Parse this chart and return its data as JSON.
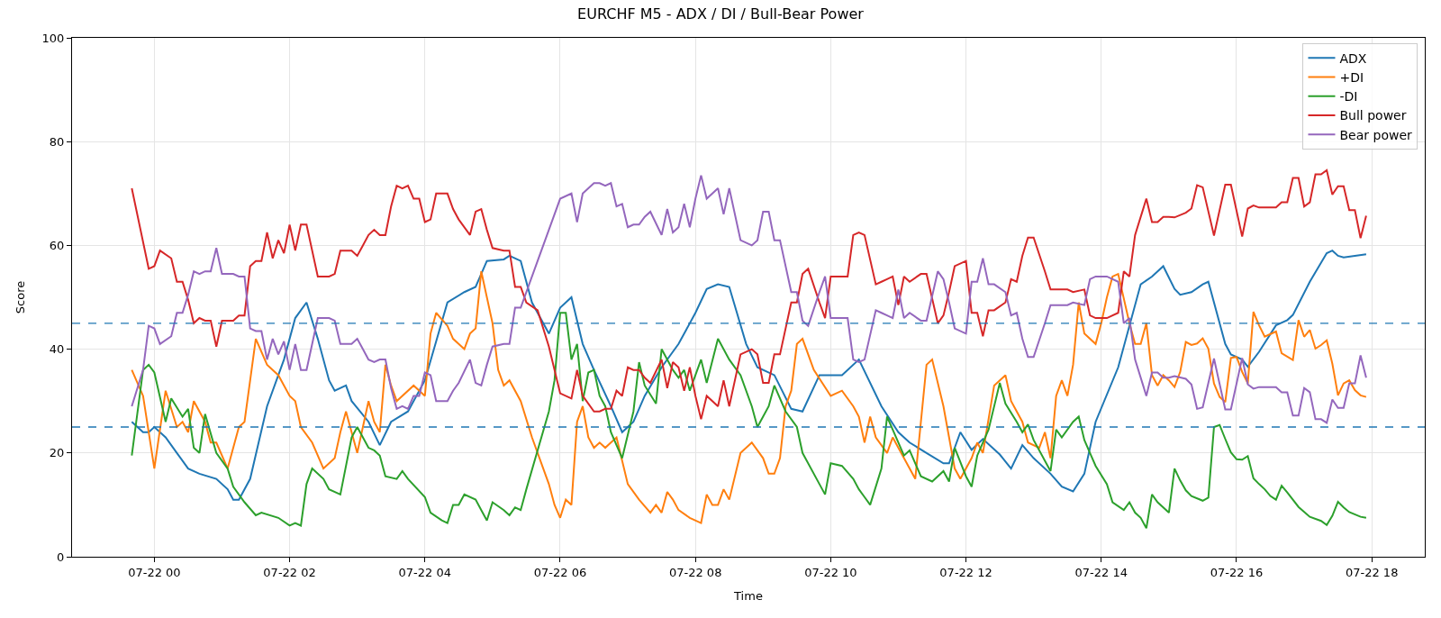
{
  "chart_data": {
    "type": "line",
    "title": "EURCHF M5 - ADX / DI / Bull-Bear Power",
    "xlabel": "Time",
    "ylabel": "Score",
    "xlim": [
      "--07-21T22:47",
      "--07-22T18:47"
    ],
    "xticks": [
      {
        "value": "--07-22T00:00",
        "label": "07-22 00"
      },
      {
        "value": "--07-22T02:00",
        "label": "07-22 02"
      },
      {
        "value": "--07-22T04:00",
        "label": "07-22 04"
      },
      {
        "value": "--07-22T06:00",
        "label": "07-22 06"
      },
      {
        "value": "--07-22T08:00",
        "label": "07-22 08"
      },
      {
        "value": "--07-22T10:00",
        "label": "07-22 10"
      },
      {
        "value": "--07-22T12:00",
        "label": "07-22 12"
      },
      {
        "value": "--07-22T14:00",
        "label": "07-22 14"
      },
      {
        "value": "--07-22T16:00",
        "label": "07-22 16"
      },
      {
        "value": "--07-22T18:00",
        "label": "07-22 18"
      }
    ],
    "ylim": [
      0,
      100
    ],
    "yticks": [
      0,
      20,
      40,
      60,
      80,
      100
    ],
    "grid": true,
    "legend": "top right",
    "line_style": "solid",
    "ref_lines": [
      {
        "axis": "y",
        "value": 25,
        "color": "#1f77b4",
        "line_style": "dashed"
      },
      {
        "axis": "y",
        "value": 45,
        "color": "#1f77b4",
        "line_style": "dashed"
      }
    ],
    "series": [
      {
        "name": "ADX",
        "color": "#1f77b4",
        "x": [
          "--07-21T23:40",
          "--07-21T23:50",
          "--07-21T23:55",
          "--07-22T00:00",
          "--07-22T00:10",
          "--07-22T00:20",
          "--07-22T00:30",
          "--07-22T00:40",
          "--07-22T00:55",
          "--07-22T01:05",
          "--07-22T01:10",
          "--07-22T01:15",
          "--07-22T01:25",
          "--07-22T01:40",
          "--07-22T01:55",
          "--07-22T02:05",
          "--07-22T02:15",
          "--07-22T02:25",
          "--07-22T02:35",
          "--07-22T02:40",
          "--07-22T02:50",
          "--07-22T02:55",
          "--07-22T03:10",
          "--07-22T03:20",
          "--07-22T03:30",
          "--07-22T03:45",
          "--07-22T04:00",
          "--07-22T04:20",
          "--07-22T04:35",
          "--07-22T04:45",
          "--07-22T04:55",
          "--07-22T05:10",
          "--07-22T05:15",
          "--07-22T05:25",
          "--07-22T05:35",
          "--07-22T05:50",
          "--07-22T06:00",
          "--07-22T06:10",
          "--07-22T06:20",
          "--07-22T06:30",
          "--07-22T06:45",
          "--07-22T06:55",
          "--07-22T07:05",
          "--07-22T07:15",
          "--07-22T07:30",
          "--07-22T07:45",
          "--07-22T08:00",
          "--07-22T08:10",
          "--07-22T08:20",
          "--07-22T08:30",
          "--07-22T08:45",
          "--07-22T08:55",
          "--07-22T09:10",
          "--07-22T09:25",
          "--07-22T09:35",
          "--07-22T09:50",
          "--07-22T10:00",
          "--07-22T10:10",
          "--07-22T10:25",
          "--07-22T10:45",
          "--07-22T11:00",
          "--07-22T11:10",
          "--07-22T11:25",
          "--07-22T11:40",
          "--07-22T11:45",
          "--07-22T11:55",
          "--07-22T12:05",
          "--07-22T12:15",
          "--07-22T12:30",
          "--07-22T12:40",
          "--07-22T12:50",
          "--07-22T13:00",
          "--07-22T13:15",
          "--07-22T13:25",
          "--07-22T13:35",
          "--07-22T13:45",
          "--07-22T13:55",
          "--07-22T14:15",
          "--07-22T14:35",
          "--07-22T14:45",
          "--07-22T14:55",
          "--07-22T15:05",
          "--07-22T15:10",
          "--07-22T15:20",
          "--07-22T15:30",
          "--07-22T15:35",
          "--07-22T15:50",
          "--07-22T15:55",
          "--07-22T16:05",
          "--07-22T16:10",
          "--07-22T16:20",
          "--07-22T16:35",
          "--07-22T16:45",
          "--07-22T16:50",
          "--07-22T17:05",
          "--07-22T17:20",
          "--07-22T17:25",
          "--07-22T17:30",
          "--07-22T17:35",
          "--07-22T17:45",
          "--07-22T17:55"
        ],
        "values": [
          26,
          24,
          24,
          25,
          23,
          20,
          17,
          16,
          15,
          13,
          11,
          11,
          15,
          29,
          38,
          46,
          49,
          42,
          34,
          32,
          33,
          30,
          26,
          21.5,
          26,
          28,
          34,
          49,
          51,
          52,
          57,
          57.3,
          58,
          57,
          49,
          43,
          48,
          50,
          41,
          36,
          29,
          24,
          26,
          31,
          36.5,
          41,
          47,
          51.6,
          52.5,
          52,
          41,
          36.5,
          35,
          28.5,
          28,
          35,
          35,
          35,
          38,
          29,
          24,
          22,
          20,
          18,
          18,
          24,
          20.6,
          22.7,
          19.7,
          17,
          21.5,
          19,
          16,
          13.5,
          12.6,
          16,
          26,
          36.5,
          52.5,
          54,
          56,
          51.6,
          50.5,
          51,
          52.5,
          53,
          41,
          39,
          38,
          36.6,
          39.5,
          44.6,
          45.6,
          46.6,
          53,
          58.5,
          59,
          58,
          57.7,
          58,
          58.3
        ]
      },
      {
        "name": "+DI",
        "color": "#ff7f0e",
        "x": [
          "--07-21T23:40",
          "--07-21T23:50",
          "--07-22T00:00",
          "--07-22T00:10",
          "--07-22T00:20",
          "--07-22T00:25",
          "--07-22T00:30",
          "--07-22T00:35",
          "--07-22T00:45",
          "--07-22T00:50",
          "--07-22T00:55",
          "--07-22T01:05",
          "--07-22T01:15",
          "--07-22T01:20",
          "--07-22T01:30",
          "--07-22T01:40",
          "--07-22T01:50",
          "--07-22T02:00",
          "--07-22T02:05",
          "--07-22T02:10",
          "--07-22T02:20",
          "--07-22T02:30",
          "--07-22T02:40",
          "--07-22T02:45",
          "--07-22T02:50",
          "--07-22T03:00",
          "--07-22T03:10",
          "--07-22T03:15",
          "--07-22T03:20",
          "--07-22T03:25",
          "--07-22T03:30",
          "--07-22T03:35",
          "--07-22T03:50",
          "--07-22T04:00",
          "--07-22T04:05",
          "--07-22T04:10",
          "--07-22T04:20",
          "--07-22T04:25",
          "--07-22T04:35",
          "--07-22T04:40",
          "--07-22T04:45",
          "--07-22T04:50",
          "--07-22T05:00",
          "--07-22T05:05",
          "--07-22T05:10",
          "--07-22T05:15",
          "--07-22T05:25",
          "--07-22T05:35",
          "--07-22T05:45",
          "--07-22T05:50",
          "--07-22T05:55",
          "--07-22T06:00",
          "--07-22T06:05",
          "--07-22T06:10",
          "--07-22T06:15",
          "--07-22T06:20",
          "--07-22T06:25",
          "--07-22T06:30",
          "--07-22T06:35",
          "--07-22T06:40",
          "--07-22T06:45",
          "--07-22T06:50",
          "--07-22T07:00",
          "--07-22T07:10",
          "--07-22T07:20",
          "--07-22T07:25",
          "--07-22T07:30",
          "--07-22T07:35",
          "--07-22T07:40",
          "--07-22T07:45",
          "--07-22T07:55",
          "--07-22T08:05",
          "--07-22T08:10",
          "--07-22T08:15",
          "--07-22T08:20",
          "--07-22T08:25",
          "--07-22T08:30",
          "--07-22T08:40",
          "--07-22T08:50",
          "--07-22T09:00",
          "--07-22T09:05",
          "--07-22T09:10",
          "--07-22T09:15",
          "--07-22T09:20",
          "--07-22T09:25",
          "--07-22T09:30",
          "--07-22T09:35",
          "--07-22T09:45",
          "--07-22T10:00",
          "--07-22T10:10",
          "--07-22T10:20",
          "--07-22T10:25",
          "--07-22T10:30",
          "--07-22T10:35",
          "--07-22T10:40",
          "--07-22T10:50",
          "--07-22T10:55",
          "--07-22T11:05",
          "--07-22T11:10",
          "--07-22T11:15",
          "--07-22T11:25",
          "--07-22T11:30",
          "--07-22T11:40",
          "--07-22T11:45",
          "--07-22T11:50",
          "--07-22T11:55",
          "--07-22T12:05",
          "--07-22T12:10",
          "--07-22T12:15",
          "--07-22T12:25",
          "--07-22T12:35",
          "--07-22T12:40",
          "--07-22T12:50",
          "--07-22T12:55",
          "--07-22T13:05",
          "--07-22T13:10",
          "--07-22T13:15",
          "--07-22T13:20",
          "--07-22T13:25",
          "--07-22T13:30",
          "--07-22T13:35",
          "--07-22T13:40",
          "--07-22T13:45",
          "--07-22T13:55",
          "--07-22T14:00",
          "--07-22T14:05",
          "--07-22T14:10",
          "--07-22T14:15",
          "--07-22T14:25",
          "--07-22T14:30",
          "--07-22T14:35",
          "--07-22T14:40",
          "--07-22T14:45",
          "--07-22T14:50",
          "--07-22T14:55",
          "--07-22T15:00",
          "--07-22T15:05",
          "--07-22T15:10",
          "--07-22T15:15",
          "--07-22T15:20",
          "--07-22T15:25",
          "--07-22T15:30",
          "--07-22T15:35",
          "--07-22T15:40",
          "--07-22T15:45",
          "--07-22T15:50",
          "--07-22T15:55",
          "--07-22T16:00",
          "--07-22T16:05",
          "--07-22T16:10",
          "--07-22T16:15",
          "--07-22T16:20",
          "--07-22T16:25",
          "--07-22T16:35",
          "--07-22T16:40",
          "--07-22T16:50",
          "--07-22T16:55",
          "--07-22T17:00",
          "--07-22T17:05",
          "--07-22T17:10",
          "--07-22T17:15",
          "--07-22T17:20",
          "--07-22T17:25",
          "--07-22T17:30",
          "--07-22T17:35",
          "--07-22T17:40",
          "--07-22T17:45",
          "--07-22T17:50",
          "--07-22T17:55"
        ],
        "values": [
          36,
          31,
          17,
          32,
          25,
          26,
          24,
          30,
          26,
          22,
          22,
          17,
          25,
          26,
          42,
          37,
          35,
          31,
          30,
          25,
          22,
          17,
          19,
          24,
          28,
          20,
          30,
          26,
          24,
          37,
          33,
          30,
          33,
          31,
          43,
          47,
          44.5,
          42,
          40,
          43,
          44,
          55,
          45,
          36,
          33,
          34,
          30,
          23,
          17,
          14,
          10,
          7.5,
          11,
          10,
          26,
          29,
          23,
          21,
          22,
          21,
          22,
          23,
          14,
          11,
          8.5,
          10,
          8.5,
          12.5,
          11,
          9,
          7.5,
          6.5,
          12,
          10,
          10,
          13,
          11,
          20,
          22,
          19,
          16,
          16,
          19,
          29,
          32,
          41,
          42,
          36,
          31,
          32,
          29,
          27,
          22,
          27,
          23,
          20,
          23,
          19,
          17,
          15,
          37,
          38,
          29,
          23,
          17,
          15,
          19,
          22,
          20,
          33,
          35,
          30,
          26,
          22,
          21,
          24,
          19,
          31,
          34,
          31,
          37,
          49,
          43,
          41,
          45,
          50,
          54,
          54.5,
          45,
          41,
          41,
          45,
          35,
          33,
          35,
          34,
          32.7,
          35.6,
          41.4,
          40.8,
          41.1,
          42.1,
          40.1,
          33.4,
          30.8,
          29.8,
          38.3,
          38.5,
          35.6,
          33.4,
          47.2,
          44.6,
          42.4,
          43.4,
          39.2,
          37.9,
          45.6,
          42.4,
          43.7,
          40.1,
          40.8,
          41.7,
          37.2,
          31.1,
          33.4,
          34,
          32.1,
          31.1,
          30.8
        ]
      },
      {
        "name": "-DI",
        "color": "#2ca02c",
        "x": [
          "--07-21T23:40",
          "--07-21T23:50",
          "--07-21T23:55",
          "--07-22T00:00",
          "--07-22T00:10",
          "--07-22T00:15",
          "--07-22T00:25",
          "--07-22T00:30",
          "--07-22T00:35",
          "--07-22T00:40",
          "--07-22T00:45",
          "--07-22T00:55",
          "--07-22T01:05",
          "--07-22T01:10",
          "--07-22T01:20",
          "--07-22T01:30",
          "--07-22T01:35",
          "--07-22T01:50",
          "--07-22T02:00",
          "--07-22T02:05",
          "--07-22T02:10",
          "--07-22T02:15",
          "--07-22T02:20",
          "--07-22T02:30",
          "--07-22T02:35",
          "--07-22T02:45",
          "--07-22T02:55",
          "--07-22T03:00",
          "--07-22T03:10",
          "--07-22T03:15",
          "--07-22T03:20",
          "--07-22T03:25",
          "--07-22T03:35",
          "--07-22T03:40",
          "--07-22T03:45",
          "--07-22T04:00",
          "--07-22T04:05",
          "--07-22T04:15",
          "--07-22T04:20",
          "--07-22T04:25",
          "--07-22T04:30",
          "--07-22T04:35",
          "--07-22T04:45",
          "--07-22T04:50",
          "--07-22T04:55",
          "--07-22T05:00",
          "--07-22T05:10",
          "--07-22T05:15",
          "--07-22T05:20",
          "--07-22T05:25",
          "--07-22T05:30",
          "--07-22T05:50",
          "--07-22T05:55",
          "--07-22T06:00",
          "--07-22T06:05",
          "--07-22T06:10",
          "--07-22T06:15",
          "--07-22T06:20",
          "--07-22T06:25",
          "--07-22T06:30",
          "--07-22T06:35",
          "--07-22T06:40",
          "--07-22T06:45",
          "--07-22T06:55",
          "--07-22T07:05",
          "--07-22T07:10",
          "--07-22T07:15",
          "--07-22T07:25",
          "--07-22T07:30",
          "--07-22T07:40",
          "--07-22T07:45",
          "--07-22T07:50",
          "--07-22T07:55",
          "--07-22T08:05",
          "--07-22T08:10",
          "--07-22T08:20",
          "--07-22T08:30",
          "--07-22T08:40",
          "--07-22T08:50",
          "--07-22T08:55",
          "--07-22T09:05",
          "--07-22T09:10",
          "--07-22T09:20",
          "--07-22T09:30",
          "--07-22T09:35",
          "--07-22T09:50",
          "--07-22T09:55",
          "--07-22T10:00",
          "--07-22T10:10",
          "--07-22T10:20",
          "--07-22T10:25",
          "--07-22T10:30",
          "--07-22T10:35",
          "--07-22T10:45",
          "--07-22T10:50",
          "--07-22T10:55",
          "--07-22T11:05",
          "--07-22T11:10",
          "--07-22T11:15",
          "--07-22T11:20",
          "--07-22T11:30",
          "--07-22T11:40",
          "--07-22T11:45",
          "--07-22T11:50",
          "--07-22T12:00",
          "--07-22T12:05",
          "--07-22T12:10",
          "--07-22T12:20",
          "--07-22T12:30",
          "--07-22T12:35",
          "--07-22T12:45",
          "--07-22T12:50",
          "--07-22T12:55",
          "--07-22T13:00",
          "--07-22T13:10",
          "--07-22T13:15",
          "--07-22T13:20",
          "--07-22T13:25",
          "--07-22T13:35",
          "--07-22T13:40",
          "--07-22T13:45",
          "--07-22T13:50",
          "--07-22T13:55",
          "--07-22T14:05",
          "--07-22T14:10",
          "--07-22T14:20",
          "--07-22T14:25",
          "--07-22T14:30",
          "--07-22T14:35",
          "--07-22T14:40",
          "--07-22T14:45",
          "--07-22T14:50",
          "--07-22T15:00",
          "--07-22T15:05",
          "--07-22T15:10",
          "--07-22T15:15",
          "--07-22T15:20",
          "--07-22T15:30",
          "--07-22T15:35",
          "--07-22T15:40",
          "--07-22T15:45",
          "--07-22T15:50",
          "--07-22T15:55",
          "--07-22T16:00",
          "--07-22T16:05",
          "--07-22T16:10",
          "--07-22T16:15",
          "--07-22T16:20",
          "--07-22T16:25",
          "--07-22T16:30",
          "--07-22T16:35",
          "--07-22T16:40",
          "--07-22T16:45",
          "--07-22T16:55",
          "--07-22T17:05",
          "--07-22T17:15",
          "--07-22T17:20",
          "--07-22T17:25",
          "--07-22T17:30",
          "--07-22T17:35",
          "--07-22T17:40",
          "--07-22T17:50",
          "--07-22T17:55"
        ],
        "values": [
          19.5,
          36,
          37,
          35.5,
          26,
          30.5,
          27,
          28.5,
          21,
          20,
          27.5,
          20,
          17,
          13.5,
          10.5,
          8,
          8.5,
          7.5,
          6,
          6.5,
          6,
          14,
          17,
          15,
          13,
          12,
          23,
          25,
          21,
          20.5,
          19.5,
          15.5,
          15,
          16.5,
          15,
          11.5,
          8.5,
          7,
          6.5,
          10,
          10,
          12,
          11,
          9,
          7,
          10.5,
          9,
          8,
          9.5,
          9,
          13,
          28,
          34,
          47,
          47,
          38,
          41,
          30,
          35.5,
          36,
          31,
          29,
          24,
          19,
          28,
          37.5,
          33,
          29.5,
          40,
          36,
          34.5,
          36,
          32,
          38,
          33.5,
          42,
          38,
          35,
          29,
          25,
          29,
          33,
          28,
          25,
          20,
          14,
          12,
          18,
          17.5,
          15,
          13,
          11.5,
          10,
          17,
          27,
          24.5,
          19.5,
          20.5,
          18,
          15.5,
          14.5,
          16.5,
          14.5,
          21,
          15.5,
          13.5,
          19.5,
          24.5,
          33.5,
          29.5,
          26,
          24,
          25.5,
          22.5,
          18.5,
          16.5,
          24.5,
          23,
          26,
          27,
          22.5,
          20,
          17.5,
          14,
          10.5,
          9,
          10.5,
          8.5,
          7.5,
          5.5,
          12,
          10.5,
          8.5,
          17,
          14.7,
          12.8,
          11.7,
          10.8,
          11.4,
          25,
          25.4,
          22.7,
          20.1,
          18.8,
          18.7,
          19.4,
          15.1,
          14,
          13,
          11.7,
          11,
          13.7,
          12.4,
          9.6,
          7.7,
          6.9,
          6.1,
          7.9,
          10.6,
          9.5,
          8.6,
          7.7,
          7.5
        ]
      },
      {
        "name": "Bull power",
        "color": "#d62728",
        "x": [
          "--07-21T23:40",
          "--07-21T23:55",
          "--07-22T00:00",
          "--07-22T00:05",
          "--07-22T00:15",
          "--07-22T00:20",
          "--07-22T00:25",
          "--07-22T00:30",
          "--07-22T00:35",
          "--07-22T00:40",
          "--07-22T00:45",
          "--07-22T00:50",
          "--07-22T00:55",
          "--07-22T01:00",
          "--07-22T01:10",
          "--07-22T01:15",
          "--07-22T01:20",
          "--07-22T01:25",
          "--07-22T01:30",
          "--07-22T01:35",
          "--07-22T01:40",
          "--07-22T01:45",
          "--07-22T01:50",
          "--07-22T01:55",
          "--07-22T02:00",
          "--07-22T02:05",
          "--07-22T02:10",
          "--07-22T02:15",
          "--07-22T02:25",
          "--07-22T02:35",
          "--07-22T02:40",
          "--07-22T02:45",
          "--07-22T02:55",
          "--07-22T03:00",
          "--07-22T03:05",
          "--07-22T03:10",
          "--07-22T03:15",
          "--07-22T03:20",
          "--07-22T03:25",
          "--07-22T03:30",
          "--07-22T03:35",
          "--07-22T03:40",
          "--07-22T03:45",
          "--07-22T03:50",
          "--07-22T03:55",
          "--07-22T04:00",
          "--07-22T04:05",
          "--07-22T04:10",
          "--07-22T04:15",
          "--07-22T04:20",
          "--07-22T04:25",
          "--07-22T04:30",
          "--07-22T04:40",
          "--07-22T04:45",
          "--07-22T04:50",
          "--07-22T04:55",
          "--07-22T05:00",
          "--07-22T05:10",
          "--07-22T05:15",
          "--07-22T05:20",
          "--07-22T05:25",
          "--07-22T05:30",
          "--07-22T05:40",
          "--07-22T05:50",
          "--07-22T06:00",
          "--07-22T06:10",
          "--07-22T06:15",
          "--07-22T06:20",
          "--07-22T06:30",
          "--07-22T06:35",
          "--07-22T06:40",
          "--07-22T06:45",
          "--07-22T06:50",
          "--07-22T06:55",
          "--07-22T07:00",
          "--07-22T07:05",
          "--07-22T07:10",
          "--07-22T07:15",
          "--07-22T07:20",
          "--07-22T07:30",
          "--07-22T07:35",
          "--07-22T07:40",
          "--07-22T07:45",
          "--07-22T07:50",
          "--07-22T07:55",
          "--07-22T08:00",
          "--07-22T08:05",
          "--07-22T08:10",
          "--07-22T08:20",
          "--07-22T08:25",
          "--07-22T08:30",
          "--07-22T08:40",
          "--07-22T08:50",
          "--07-22T08:55",
          "--07-22T09:00",
          "--07-22T09:05",
          "--07-22T09:10",
          "--07-22T09:15",
          "--07-22T09:25",
          "--07-22T09:30",
          "--07-22T09:35",
          "--07-22T09:40",
          "--07-22T09:50",
          "--07-22T09:55",
          "--07-22T10:00",
          "--07-22T10:05",
          "--07-22T10:15",
          "--07-22T10:20",
          "--07-22T10:25",
          "--07-22T10:30",
          "--07-22T10:40",
          "--07-22T10:45",
          "--07-22T10:50",
          "--07-22T10:55",
          "--07-22T11:00",
          "--07-22T11:05",
          "--07-22T11:10",
          "--07-22T11:20",
          "--07-22T11:25",
          "--07-22T11:35",
          "--07-22T11:40",
          "--07-22T11:45",
          "--07-22T11:50",
          "--07-22T12:00",
          "--07-22T12:05",
          "--07-22T12:10",
          "--07-22T12:15",
          "--07-22T12:20",
          "--07-22T12:25",
          "--07-22T12:35",
          "--07-22T12:40",
          "--07-22T12:45",
          "--07-22T12:50",
          "--07-22T12:55",
          "--07-22T13:00",
          "--07-22T13:10",
          "--07-22T13:15",
          "--07-22T13:30",
          "--07-22T13:35",
          "--07-22T13:45",
          "--07-22T13:50",
          "--07-22T13:55",
          "--07-22T14:05",
          "--07-22T14:15",
          "--07-22T14:20",
          "--07-22T14:25",
          "--07-22T14:30",
          "--07-22T14:40",
          "--07-22T14:45",
          "--07-22T14:50",
          "--07-22T14:55",
          "--07-22T15:00",
          "--07-22T15:05",
          "--07-22T15:15",
          "--07-22T15:20",
          "--07-22T15:25",
          "--07-22T15:30",
          "--07-22T15:40",
          "--07-22T15:50",
          "--07-22T15:55",
          "--07-22T16:05",
          "--07-22T16:10",
          "--07-22T16:15",
          "--07-22T16:20",
          "--07-22T16:35",
          "--07-22T16:40",
          "--07-22T16:45",
          "--07-22T16:50",
          "--07-22T16:55",
          "--07-22T17:00",
          "--07-22T17:05",
          "--07-22T17:10",
          "--07-22T17:15",
          "--07-22T17:20",
          "--07-22T17:25",
          "--07-22T17:30",
          "--07-22T17:35",
          "--07-22T17:40",
          "--07-22T17:45",
          "--07-22T17:50",
          "--07-22T17:55"
        ],
        "values": [
          71,
          55.5,
          56,
          59,
          57.5,
          53,
          53,
          49.5,
          45,
          46,
          45.5,
          45.5,
          40.5,
          45.5,
          45.5,
          46.5,
          46.5,
          56,
          57,
          57,
          62.5,
          57.5,
          61,
          58.5,
          64,
          59,
          64,
          64,
          54,
          54,
          54.5,
          59,
          59,
          58,
          60,
          62,
          63,
          62,
          62,
          67.5,
          71.5,
          71,
          71.5,
          69,
          69,
          64.5,
          65,
          70,
          70,
          70,
          67,
          65,
          62,
          66.5,
          67,
          63,
          59.5,
          59,
          59,
          52,
          52,
          49,
          47.5,
          40.5,
          31.5,
          30.5,
          36,
          31,
          28,
          28,
          28.5,
          28.5,
          32,
          31,
          36.5,
          36,
          36,
          34.5,
          33.5,
          38,
          32.5,
          37.5,
          36.5,
          32,
          36.5,
          31,
          26.5,
          31,
          29,
          34,
          29,
          39,
          40,
          39,
          33.5,
          33.5,
          39,
          39,
          49,
          49,
          54.5,
          55.5,
          49,
          46,
          54,
          54,
          54,
          62,
          62.5,
          62,
          52.5,
          53,
          53.5,
          54,
          48.5,
          54,
          53,
          54.5,
          54.5,
          45,
          46.5,
          51,
          56,
          57,
          47,
          47,
          42.5,
          47.5,
          47.5,
          49,
          53.5,
          53,
          58,
          61.5,
          61.5,
          55,
          51.5,
          51.5,
          51,
          51.5,
          46.5,
          46,
          46,
          47,
          55,
          54,
          62,
          69,
          64.5,
          64.5,
          65.5,
          65.5,
          65.4,
          66.3,
          67.1,
          71.6,
          71.2,
          61.9,
          71.7,
          71.7,
          61.7,
          67.1,
          67.7,
          67.3,
          67.3,
          68.3,
          68.3,
          73,
          73,
          67.5,
          68.3,
          73.7,
          73.7,
          74.5,
          69.8,
          71.4,
          71.4,
          66.8,
          66.8,
          61.4,
          65.7
        ]
      },
      {
        "name": "Bear power",
        "color": "#9467bd",
        "x": [
          "--07-21T23:40",
          "--07-21T23:50",
          "--07-21T23:55",
          "--07-22T00:00",
          "--07-22T00:05",
          "--07-22T00:15",
          "--07-22T00:20",
          "--07-22T00:25",
          "--07-22T00:30",
          "--07-22T00:35",
          "--07-22T00:40",
          "--07-22T00:45",
          "--07-22T00:50",
          "--07-22T00:55",
          "--07-22T01:00",
          "--07-22T01:10",
          "--07-22T01:15",
          "--07-22T01:20",
          "--07-22T01:25",
          "--07-22T01:30",
          "--07-22T01:35",
          "--07-22T01:40",
          "--07-22T01:45",
          "--07-22T01:50",
          "--07-22T01:55",
          "--07-22T02:00",
          "--07-22T02:05",
          "--07-22T02:10",
          "--07-22T02:15",
          "--07-22T02:25",
          "--07-22T02:35",
          "--07-22T02:40",
          "--07-22T02:45",
          "--07-22T02:55",
          "--07-22T03:00",
          "--07-22T03:05",
          "--07-22T03:10",
          "--07-22T03:15",
          "--07-22T03:20",
          "--07-22T03:25",
          "--07-22T03:30",
          "--07-22T03:35",
          "--07-22T03:40",
          "--07-22T03:45",
          "--07-22T03:50",
          "--07-22T03:55",
          "--07-22T04:00",
          "--07-22T04:05",
          "--07-22T04:10",
          "--07-22T04:15",
          "--07-22T04:20",
          "--07-22T04:25",
          "--07-22T04:30",
          "--07-22T04:40",
          "--07-22T04:45",
          "--07-22T04:50",
          "--07-22T04:55",
          "--07-22T05:00",
          "--07-22T05:10",
          "--07-22T05:15",
          "--07-22T05:20",
          "--07-22T05:25",
          "--07-22T05:30",
          "--07-22T05:40",
          "--07-22T05:50",
          "--07-22T06:00",
          "--07-22T06:10",
          "--07-22T06:15",
          "--07-22T06:20",
          "--07-22T06:30",
          "--07-22T06:35",
          "--07-22T06:40",
          "--07-22T06:45",
          "--07-22T06:50",
          "--07-22T06:55",
          "--07-22T07:00",
          "--07-22T07:05",
          "--07-22T07:10",
          "--07-22T07:15",
          "--07-22T07:20",
          "--07-22T07:30",
          "--07-22T07:35",
          "--07-22T07:40",
          "--07-22T07:45",
          "--07-22T07:50",
          "--07-22T07:55",
          "--07-22T08:00",
          "--07-22T08:05",
          "--07-22T08:10",
          "--07-22T08:20",
          "--07-22T08:25",
          "--07-22T08:30",
          "--07-22T08:40",
          "--07-22T08:50",
          "--07-22T08:55",
          "--07-22T09:00",
          "--07-22T09:05",
          "--07-22T09:10",
          "--07-22T09:15",
          "--07-22T09:25",
          "--07-22T09:30",
          "--07-22T09:35",
          "--07-22T09:40",
          "--07-22T09:50",
          "--07-22T09:55",
          "--07-22T10:00",
          "--07-22T10:05",
          "--07-22T10:15",
          "--07-22T10:20",
          "--07-22T10:25",
          "--07-22T10:30",
          "--07-22T10:40",
          "--07-22T10:45",
          "--07-22T10:50",
          "--07-22T10:55",
          "--07-22T11:00",
          "--07-22T11:05",
          "--07-22T11:10",
          "--07-22T11:20",
          "--07-22T11:25",
          "--07-22T11:35",
          "--07-22T11:40",
          "--07-22T11:45",
          "--07-22T11:50",
          "--07-22T12:00",
          "--07-22T12:05",
          "--07-22T12:10",
          "--07-22T12:15",
          "--07-22T12:20",
          "--07-22T12:25",
          "--07-22T12:35",
          "--07-22T12:40",
          "--07-22T12:45",
          "--07-22T12:50",
          "--07-22T12:55",
          "--07-22T13:00",
          "--07-22T13:10",
          "--07-22T13:15",
          "--07-22T13:30",
          "--07-22T13:35",
          "--07-22T13:45",
          "--07-22T13:50",
          "--07-22T13:55",
          "--07-22T14:05",
          "--07-22T14:15",
          "--07-22T14:20",
          "--07-22T14:25",
          "--07-22T14:30",
          "--07-22T14:40",
          "--07-22T14:45",
          "--07-22T14:50",
          "--07-22T14:55",
          "--07-22T15:00",
          "--07-22T15:05",
          "--07-22T15:15",
          "--07-22T15:20",
          "--07-22T15:25",
          "--07-22T15:30",
          "--07-22T15:40",
          "--07-22T15:50",
          "--07-22T15:55",
          "--07-22T16:05",
          "--07-22T16:10",
          "--07-22T16:15",
          "--07-22T16:20",
          "--07-22T16:35",
          "--07-22T16:40",
          "--07-22T16:45",
          "--07-22T16:50",
          "--07-22T16:55",
          "--07-22T17:00",
          "--07-22T17:05",
          "--07-22T17:10",
          "--07-22T17:15",
          "--07-22T17:20",
          "--07-22T17:25",
          "--07-22T17:30",
          "--07-22T17:35",
          "--07-22T17:40",
          "--07-22T17:45",
          "--07-22T17:50",
          "--07-22T17:55"
        ],
        "values": [
          29,
          36,
          44.5,
          44,
          41,
          42.5,
          47,
          47,
          50.5,
          55,
          54.5,
          55,
          55,
          59.5,
          54.5,
          54.5,
          54,
          54,
          44,
          43.5,
          43.5,
          38,
          42,
          39,
          41.5,
          36,
          41,
          36,
          36,
          46,
          46,
          45.5,
          41,
          41,
          42,
          40,
          38,
          37.5,
          38,
          38,
          32.5,
          28.5,
          29,
          28.5,
          31,
          31,
          35.5,
          35,
          30,
          30,
          30,
          32,
          33.5,
          38,
          33.5,
          33,
          37,
          40.5,
          41,
          41,
          48,
          48,
          51,
          57,
          63,
          69,
          70,
          64.5,
          70,
          72,
          72,
          71.5,
          72,
          67.5,
          68,
          63.5,
          64,
          64,
          65.5,
          66.5,
          62,
          67,
          62.5,
          63.5,
          68,
          63.5,
          69,
          73.5,
          69,
          71,
          66,
          71,
          61,
          60,
          61,
          66.5,
          66.5,
          61,
          61,
          51,
          51,
          45.5,
          44.5,
          51,
          54,
          46,
          46,
          46,
          38,
          37.5,
          38,
          47.5,
          47,
          46.5,
          46,
          51.5,
          46,
          47,
          45.5,
          45.5,
          55,
          53.5,
          49,
          44,
          43,
          53,
          53,
          57.5,
          52.5,
          52.5,
          51,
          46.5,
          47,
          42,
          38.5,
          38.5,
          45,
          48.5,
          48.5,
          49,
          48.5,
          53.5,
          54,
          54,
          53,
          45,
          46,
          38,
          31,
          35.5,
          35.5,
          34.5,
          34.5,
          34.8,
          34.3,
          33.2,
          28.5,
          28.8,
          38.2,
          28.4,
          28.4,
          38.3,
          33.2,
          32.4,
          32.7,
          32.7,
          31.7,
          31.7,
          27.2,
          27.2,
          32.5,
          31.7,
          26.5,
          26.5,
          25.8,
          30.3,
          28.7,
          28.7,
          33.4,
          33.4,
          38.8,
          34.5
        ]
      }
    ]
  }
}
